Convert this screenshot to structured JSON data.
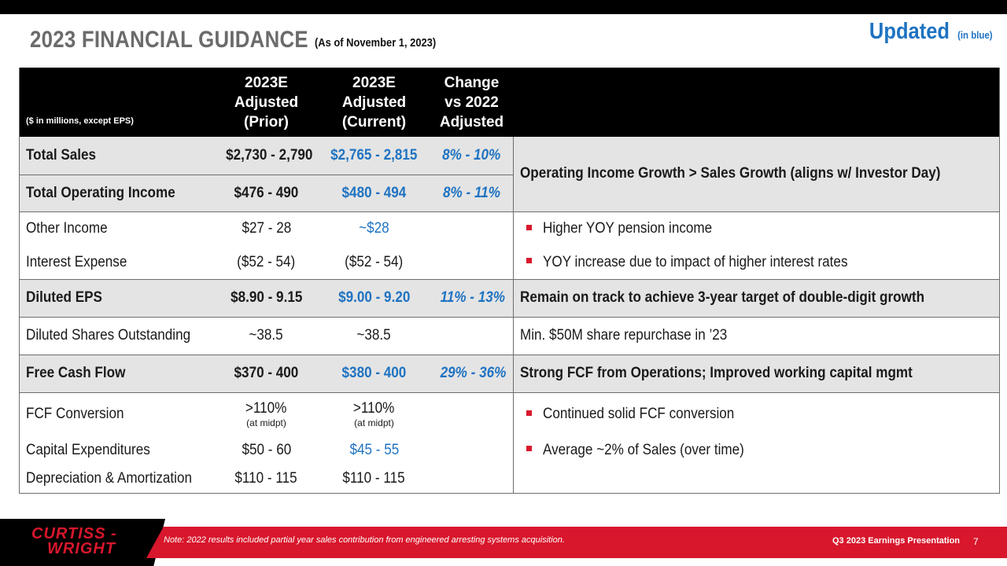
{
  "header": {
    "title": "2023 FINANCIAL GUIDANCE",
    "subtitle": "(As of November 1, 2023)",
    "updated": "Updated",
    "updated_note": "(in blue)"
  },
  "table": {
    "units": "($ in millions, except EPS)",
    "col_prior": [
      "2023E",
      "Adjusted",
      "(Prior)"
    ],
    "col_current": [
      "2023E",
      "Adjusted",
      "(Current)"
    ],
    "col_change": [
      "Change",
      "vs 2022",
      "Adjusted"
    ],
    "rows": {
      "total_sales": {
        "label": "Total Sales",
        "prior": "$2,730 - 2,790",
        "current": "$2,765 - 2,815",
        "change": "8% - 10%"
      },
      "total_operating_income": {
        "label": "Total Operating Income",
        "prior": "$476 - 490",
        "current": "$480 - 494",
        "change": "8% - 11%"
      },
      "sales_oi_comment": "Operating Income Growth > Sales Growth (aligns w/ Investor Day)",
      "other_income": {
        "label": "Other Income",
        "prior": "$27 - 28",
        "current": "~$28",
        "comment": "Higher YOY pension income"
      },
      "interest_expense": {
        "label": "Interest Expense",
        "prior": "($52 - 54)",
        "current": "($52 - 54)",
        "comment": "YOY increase due to impact of higher interest rates"
      },
      "diluted_eps": {
        "label": "Diluted EPS",
        "prior": "$8.90 - 9.15",
        "current": "$9.00 - 9.20",
        "change": "11% - 13%",
        "comment": "Remain on track to achieve 3-year target of double-digit growth"
      },
      "diluted_shares": {
        "label": "Diluted Shares Outstanding",
        "prior": "~38.5",
        "current": "~38.5",
        "comment": "Min. $50M share repurchase in ’23"
      },
      "free_cash_flow": {
        "label": "Free Cash Flow",
        "prior": "$370 - 400",
        "current": "$380 - 400",
        "change": "29% - 36%",
        "comment": "Strong FCF from Operations; Improved working capital mgmt"
      },
      "fcf_conversion": {
        "label": "FCF Conversion",
        "prior": ">110%",
        "prior_note": "(at midpt)",
        "current": ">110%",
        "current_note": "(at midpt)",
        "comment": "Continued solid FCF conversion"
      },
      "capex": {
        "label": "Capital Expenditures",
        "prior": "$50 - 60",
        "current": "$45 - 55",
        "comment": "Average ~2% of Sales (over time)"
      },
      "d_and_a": {
        "label": "Depreciation & Amortization",
        "prior": "$110 - 115",
        "current": "$110 - 115"
      }
    }
  },
  "footer": {
    "logo_line1": "CURTISS -",
    "logo_line2": "WRIGHT",
    "note": "Note: 2022 results included partial year sales contribution from engineered  arresting systems acquisition.",
    "presentation": "Q3 2023 Earnings Presentation",
    "page": "7"
  },
  "colors": {
    "accent_blue": "#1f73c2",
    "brand_red": "#d8172c",
    "header_black": "#000000",
    "shade_gray": "#e4e4e4"
  }
}
